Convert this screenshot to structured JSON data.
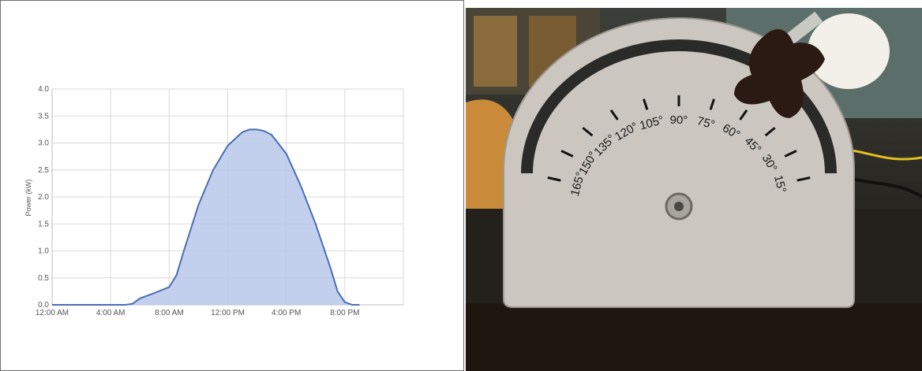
{
  "chart_data": {
    "type": "area",
    "title": "",
    "xlabel": "",
    "ylabel": "Power (kW)",
    "ylim": [
      0,
      4.0
    ],
    "xlim": [
      0,
      24
    ],
    "yticks": [
      "0.0",
      "0.5",
      "1.0",
      "1.5",
      "2.0",
      "2.5",
      "3.0",
      "3.5",
      "4.0"
    ],
    "xticks": [
      "12:00 AM",
      "4:00 AM",
      "8:00 AM",
      "12:00 PM",
      "4:00 PM",
      "8:00 PM"
    ],
    "grid": true,
    "colors": {
      "line": "#4a6db5",
      "fill": "#b8c8ea",
      "grid": "#d9d9d9"
    },
    "series": [
      {
        "x": [
          0,
          5,
          5.5,
          6,
          7,
          8,
          8.5,
          9,
          10,
          11,
          12,
          13,
          13.5,
          14,
          14.5,
          15,
          16,
          17,
          18,
          19,
          19.5,
          20,
          20.5,
          21
        ],
        "values": [
          0,
          0,
          0.02,
          0.12,
          0.22,
          0.33,
          0.55,
          1.0,
          1.85,
          2.5,
          2.95,
          3.2,
          3.25,
          3.25,
          3.22,
          3.15,
          2.8,
          2.2,
          1.5,
          0.7,
          0.25,
          0.05,
          0.0,
          0
        ]
      }
    ]
  },
  "photo": {
    "description_icon": "protractor-angle-plate-photo",
    "angle_labels": [
      "165°",
      "150°",
      "135°",
      "120°",
      "105°",
      "90°",
      "75°",
      "60°",
      "45°",
      "30°",
      "15°"
    ]
  }
}
